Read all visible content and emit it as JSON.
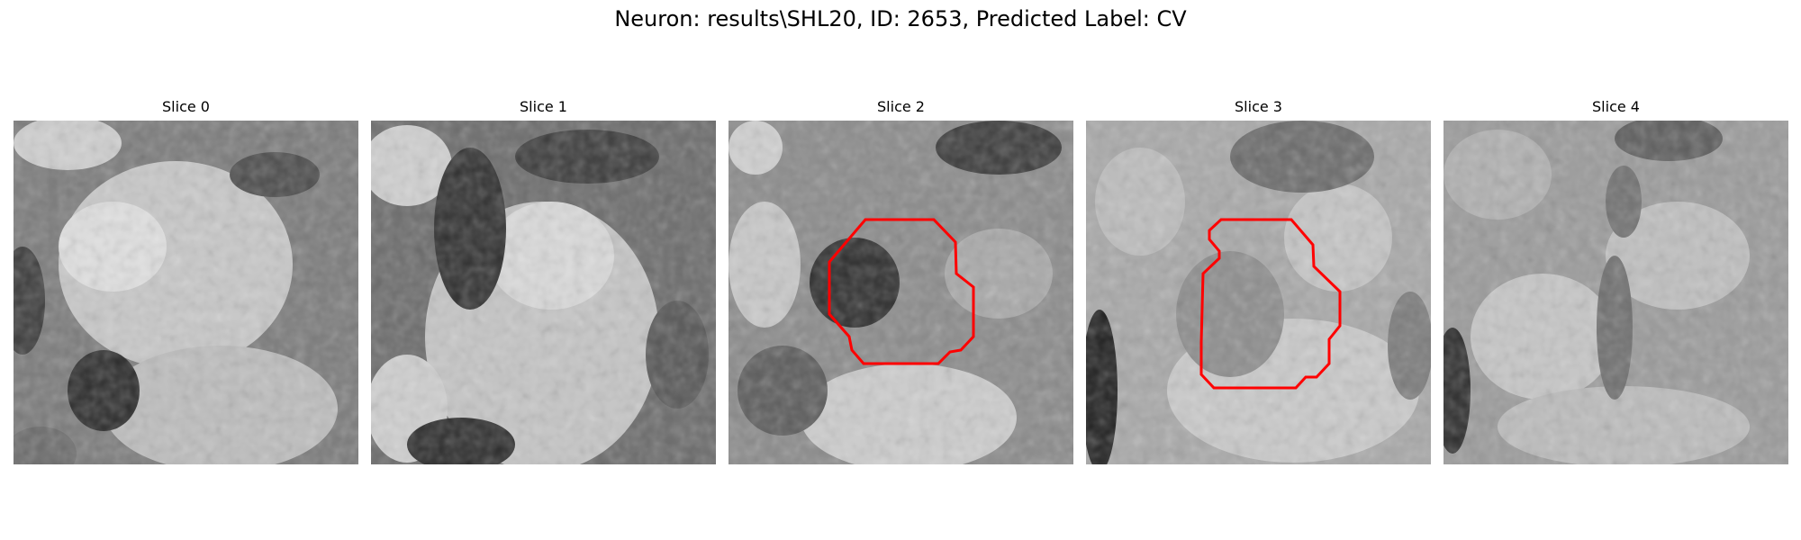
{
  "figure": {
    "title": "Neuron: results\\SHL20, ID: 2653, Predicted Label: CV"
  },
  "slices": [
    {
      "title": "Slice 0",
      "has_contour": false
    },
    {
      "title": "Slice 1",
      "has_contour": false
    },
    {
      "title": "Slice 2",
      "has_contour": true
    },
    {
      "title": "Slice 3",
      "has_contour": true
    },
    {
      "title": "Slice 4",
      "has_contour": false
    }
  ],
  "colors": {
    "contour": "#ff0000",
    "background": "#ffffff"
  }
}
